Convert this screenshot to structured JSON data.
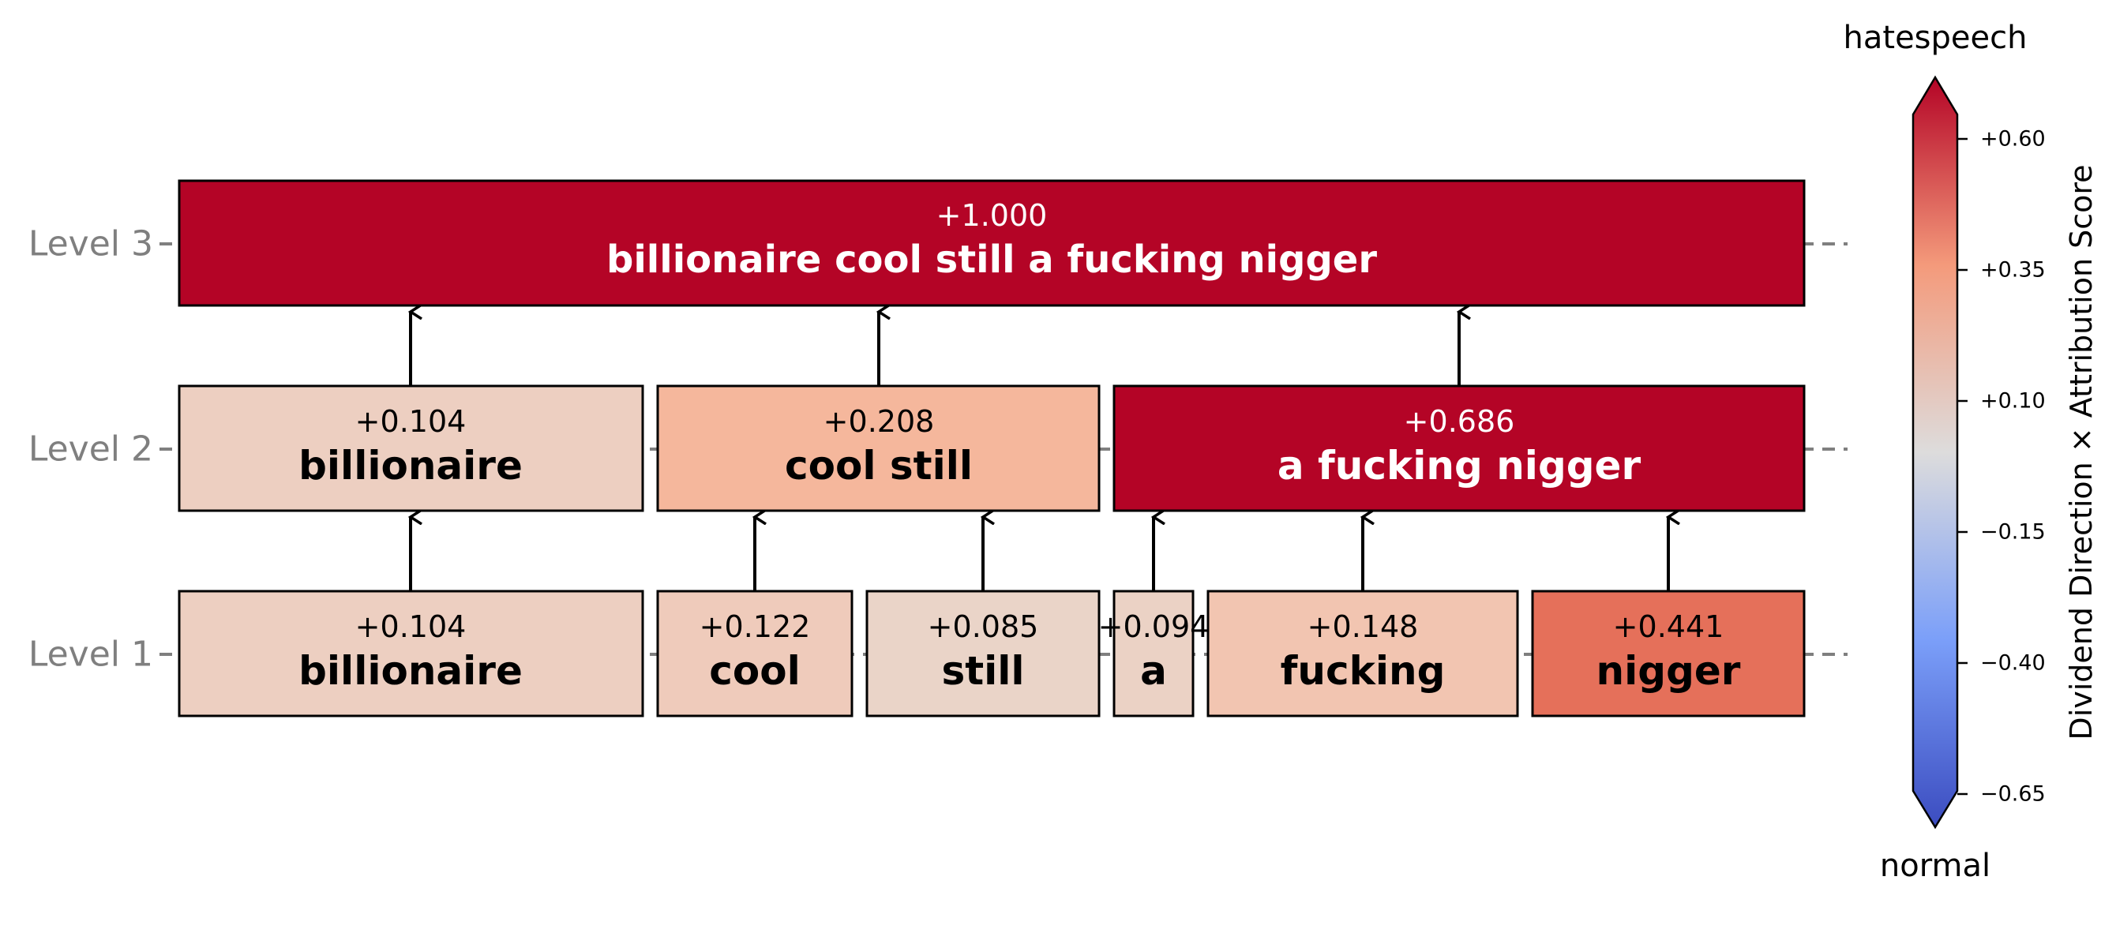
{
  "levels": [
    {
      "label": "Level 3",
      "nodes": [
        {
          "score": "+1.000",
          "text": "billionaire cool still a fucking nigger",
          "color": "#b40426"
        }
      ]
    },
    {
      "label": "Level 2",
      "nodes": [
        {
          "score": "+0.104",
          "text": "billionaire",
          "color": "#edcfc1"
        },
        {
          "score": "+0.208",
          "text": "cool still",
          "color": "#f5b79c"
        },
        {
          "score": "+0.686",
          "text": "a fucking nigger",
          "color": "#b40426"
        }
      ]
    },
    {
      "label": "Level 1",
      "nodes": [
        {
          "score": "+0.104",
          "text": "billionaire",
          "color": "#edcfc1"
        },
        {
          "score": "+0.122",
          "text": "cool",
          "color": "#efcbbb"
        },
        {
          "score": "+0.085",
          "text": "still",
          "color": "#ead4c8"
        },
        {
          "score": "+0.094",
          "text": "a",
          "color": "#ebd2c5"
        },
        {
          "score": "+0.148",
          "text": "fucking",
          "color": "#f2c5b1"
        },
        {
          "score": "+0.441",
          "text": "nigger",
          "color": "#e5705a"
        }
      ]
    }
  ],
  "colorbar": {
    "top_label": "hatespeech",
    "bottom_label": "normal",
    "axis_label": "Dividend Direction × Attribution Score",
    "ticks": [
      "+0.60",
      "+0.35",
      "+0.10",
      "−0.15",
      "−0.40",
      "−0.65"
    ],
    "colormap": "coolwarm",
    "range": [
      -0.65,
      0.6
    ]
  }
}
